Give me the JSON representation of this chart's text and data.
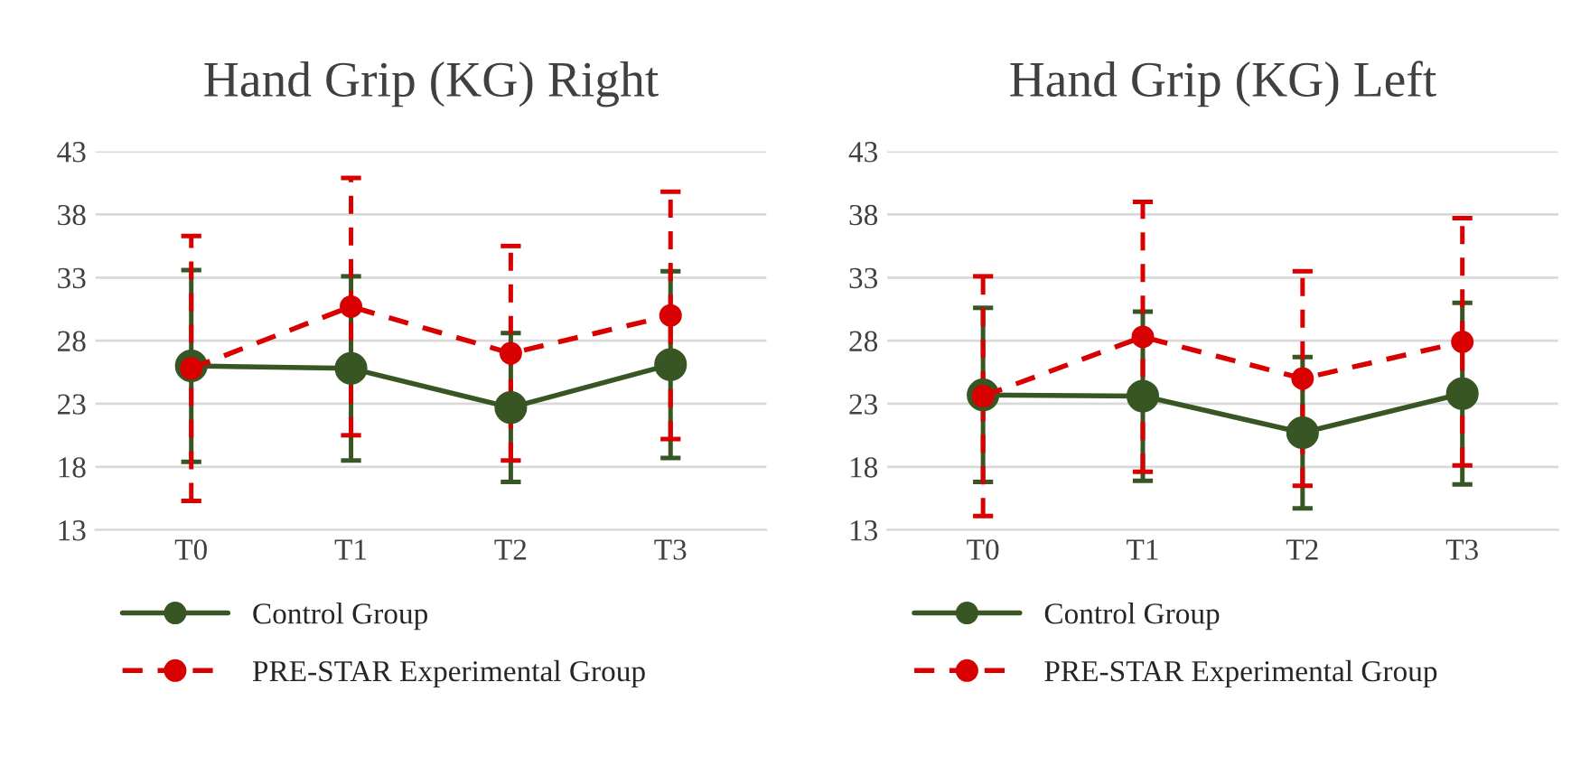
{
  "chart_data": [
    {
      "type": "line",
      "title": "Hand Grip (KG) Right",
      "categories": [
        "T0",
        "T1",
        "T2",
        "T3"
      ],
      "ylim": [
        13,
        43
      ],
      "yticks": [
        13,
        18,
        23,
        28,
        33,
        38,
        43
      ],
      "grid": "y",
      "legend": "bottom",
      "marker": "circle",
      "series": [
        {
          "name": "Control Group",
          "color": "#375623",
          "line_style": "solid",
          "values": [
            26.0,
            25.8,
            22.7,
            26.1
          ],
          "errors": [
            7.6,
            7.3,
            5.9,
            7.4
          ]
        },
        {
          "name": "PRE-STAR Experimental Group",
          "color": "#d80000",
          "line_style": "dashed",
          "values": [
            25.8,
            30.7,
            27.0,
            30.0
          ],
          "errors": [
            10.5,
            10.2,
            8.5,
            9.8
          ]
        }
      ]
    },
    {
      "type": "line",
      "title": "Hand Grip (KG) Left",
      "categories": [
        "T0",
        "T1",
        "T2",
        "T3"
      ],
      "ylim": [
        13,
        43
      ],
      "yticks": [
        13,
        18,
        23,
        28,
        33,
        38,
        43
      ],
      "grid": "y",
      "legend": "bottom",
      "marker": "circle",
      "series": [
        {
          "name": "Control Group",
          "color": "#375623",
          "line_style": "solid",
          "values": [
            23.7,
            23.6,
            20.7,
            23.8
          ],
          "errors": [
            6.9,
            6.7,
            6.0,
            7.2
          ]
        },
        {
          "name": "PRE-STAR Experimental Group",
          "color": "#d80000",
          "line_style": "dashed",
          "values": [
            23.6,
            28.3,
            25.0,
            27.9
          ],
          "errors": [
            9.5,
            10.7,
            8.5,
            9.8
          ]
        }
      ]
    }
  ]
}
